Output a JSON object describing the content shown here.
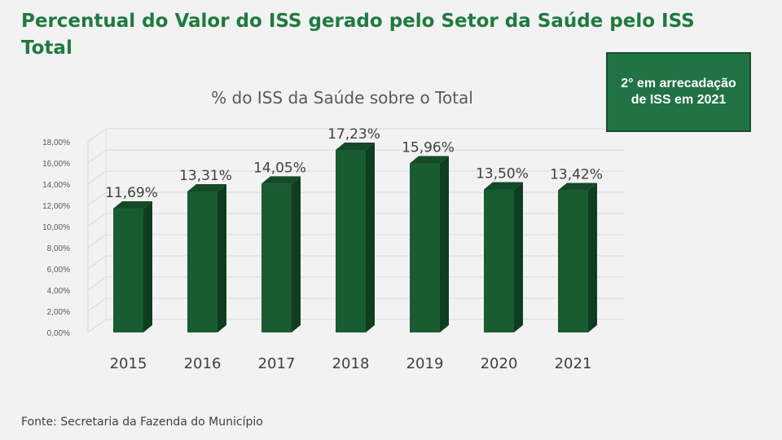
{
  "page": {
    "title": "Percentual do Valor do ISS gerado pelo Setor da Saúde pelo ISS Total",
    "badge": "2° em arrecadação de ISS em 2021",
    "source": "Fonte: Secretaria da Fazenda do Município"
  },
  "colors": {
    "title": "#1f7a3f",
    "bar_front": "#1a5c32",
    "bar_side": "#0f3d20",
    "bar_top": "#144a28",
    "badge_bg": "#217346"
  },
  "chart_data": {
    "type": "bar",
    "title": "% do ISS da Saúde sobre o Total",
    "categories": [
      "2015",
      "2016",
      "2017",
      "2018",
      "2019",
      "2020",
      "2021"
    ],
    "values": [
      11.69,
      13.31,
      14.05,
      17.23,
      15.96,
      13.5,
      13.42
    ],
    "data_labels": [
      "11,69%",
      "13,31%",
      "14,05%",
      "17,23%",
      "15,96%",
      "13,50%",
      "13,42%"
    ],
    "y_ticks": [
      "0,00%",
      "2,00%",
      "4,00%",
      "6,00%",
      "8,00%",
      "10,00%",
      "12,00%",
      "14,00%",
      "16,00%",
      "18,00%"
    ],
    "ylim": [
      0,
      18
    ],
    "grid": true,
    "legend": "none",
    "style": "3d"
  }
}
